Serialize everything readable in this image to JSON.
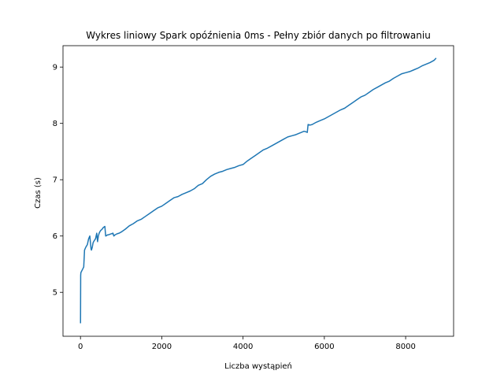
{
  "chart_data": {
    "type": "line",
    "title": "Wykres liniowy Spark opóźnienia 0ms - Pełny zbiór danych po filtrowaniu",
    "xlabel": "Liczba wystąpień",
    "ylabel": "Czas (s)",
    "xlim": [
      -430,
      9180
    ],
    "ylim": [
      4.22,
      9.38
    ],
    "xticks": [
      0,
      2000,
      4000,
      6000,
      8000
    ],
    "yticks": [
      5,
      6,
      7,
      8,
      9
    ],
    "grid": false,
    "line_color": "#1f77b4",
    "series": [
      {
        "x": [
          1,
          5,
          10,
          80,
          100,
          130,
          170,
          200,
          230,
          260,
          270,
          290,
          310,
          340,
          370,
          400,
          420,
          440,
          460,
          480,
          500,
          530,
          560,
          600,
          620,
          650,
          660,
          680,
          720,
          760,
          800,
          820,
          850,
          900,
          950,
          1000,
          1100,
          1200,
          1300,
          1400,
          1500,
          1600,
          1700,
          1800,
          1900,
          2000,
          2100,
          2200,
          2300,
          2400,
          2500,
          2600,
          2700,
          2800,
          2900,
          3000,
          3100,
          3200,
          3300,
          3400,
          3500,
          3600,
          3700,
          3800,
          3900,
          4000,
          4100,
          4200,
          4300,
          4400,
          4500,
          4600,
          4700,
          4800,
          4900,
          5000,
          5100,
          5200,
          5300,
          5400,
          5500,
          5550,
          5580,
          5600,
          5650,
          5700,
          5800,
          5900,
          6000,
          6100,
          6200,
          6300,
          6400,
          6500,
          6600,
          6700,
          6800,
          6900,
          7000,
          7100,
          7200,
          7300,
          7400,
          7500,
          7600,
          7700,
          7800,
          7900,
          8000,
          8100,
          8200,
          8300,
          8400,
          8500,
          8600,
          8700,
          8750
        ],
        "y": [
          4.45,
          5.3,
          5.35,
          5.45,
          5.75,
          5.8,
          5.85,
          5.95,
          6.0,
          5.77,
          5.75,
          5.8,
          5.88,
          5.92,
          5.95,
          6.05,
          5.9,
          6.0,
          6.05,
          6.08,
          6.1,
          6.12,
          6.15,
          6.17,
          6.0,
          6.01,
          6.02,
          6.02,
          6.03,
          6.04,
          6.05,
          6.0,
          6.02,
          6.04,
          6.05,
          6.07,
          6.12,
          6.18,
          6.22,
          6.27,
          6.3,
          6.35,
          6.4,
          6.45,
          6.5,
          6.53,
          6.58,
          6.63,
          6.68,
          6.7,
          6.74,
          6.77,
          6.8,
          6.84,
          6.9,
          6.93,
          7.0,
          7.06,
          7.1,
          7.13,
          7.15,
          7.18,
          7.2,
          7.22,
          7.25,
          7.27,
          7.33,
          7.38,
          7.43,
          7.48,
          7.53,
          7.56,
          7.6,
          7.64,
          7.68,
          7.72,
          7.76,
          7.78,
          7.8,
          7.83,
          7.86,
          7.85,
          7.84,
          7.98,
          7.97,
          7.98,
          8.02,
          8.05,
          8.08,
          8.12,
          8.16,
          8.2,
          8.24,
          8.27,
          8.32,
          8.37,
          8.42,
          8.47,
          8.5,
          8.55,
          8.6,
          8.64,
          8.68,
          8.72,
          8.75,
          8.8,
          8.84,
          8.88,
          8.9,
          8.92,
          8.95,
          8.98,
          9.02,
          9.05,
          9.08,
          9.12,
          9.16
        ]
      }
    ]
  }
}
